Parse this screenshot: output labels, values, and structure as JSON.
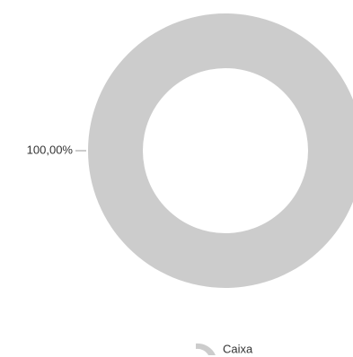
{
  "chart_data": {
    "type": "pie",
    "categories": [
      "Caixa"
    ],
    "values": [
      100
    ],
    "value_labels": [
      "100,00%"
    ],
    "color": "#cccccc",
    "legend": "bottom"
  }
}
